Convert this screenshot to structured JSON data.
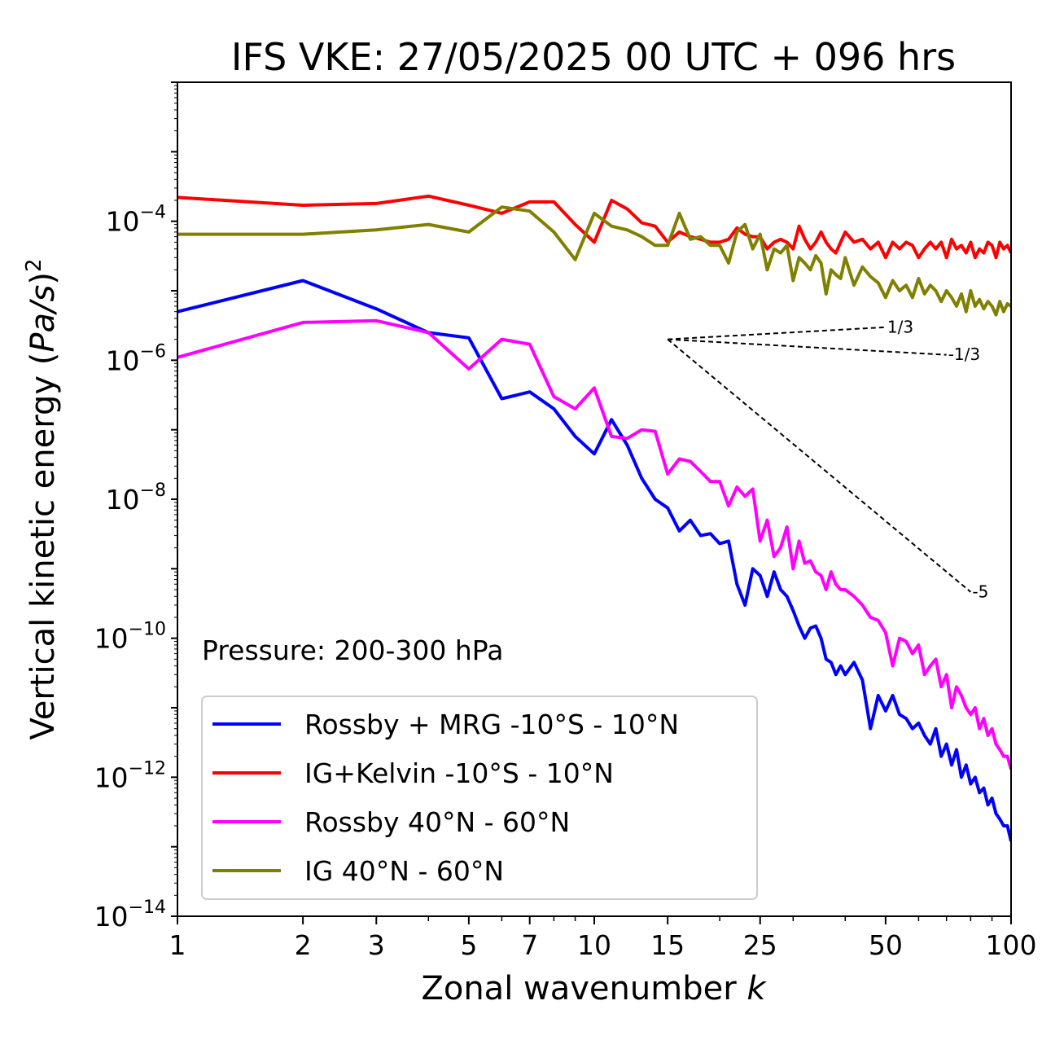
{
  "chart_data": {
    "type": "line",
    "title": "IFS VKE: 27/05/2025 00 UTC + 096 hrs",
    "xlabel": "Zonal wavenumber k",
    "xlabel_main": "Zonal wavenumber ",
    "xlabel_var": "k",
    "ylabel": "Vertical kinetic energy (Pa/s)^2",
    "ylabel_main": "Vertical kinetic energy (",
    "ylabel_var": "Pa/s",
    "ylabel_end": ")",
    "ylabel_exp": "2",
    "xscale": "log",
    "yscale": "log",
    "xlim": [
      1,
      100
    ],
    "ylim": [
      1e-14,
      0.01
    ],
    "xticks": [
      1,
      2,
      3,
      5,
      7,
      10,
      15,
      25,
      50,
      100
    ],
    "xtick_labels": [
      "1",
      "2",
      "3",
      "5",
      "7",
      "10",
      "15",
      "25",
      "50",
      "100"
    ],
    "yticks": [
      {
        "base": "10",
        "exp": "−4",
        "value": 0.0001
      },
      {
        "base": "10",
        "exp": "−6",
        "value": 1e-06
      },
      {
        "base": "10",
        "exp": "−8",
        "value": 1e-08
      },
      {
        "base": "10",
        "exp": "−10",
        "value": 1e-10
      },
      {
        "base": "10",
        "exp": "−12",
        "value": 1e-12
      },
      {
        "base": "10",
        "exp": "−14",
        "value": 1e-14
      }
    ],
    "annotation": "Pressure: 200-300 hPa",
    "legend_placement": "lower-left",
    "series": [
      {
        "name": "Rossby + MRG -10°S - 10°N",
        "color": "#0000ff",
        "x": [
          1,
          2,
          3,
          4,
          5,
          6,
          7,
          8,
          9,
          10,
          11,
          12,
          13,
          14,
          15,
          16,
          17,
          18,
          19,
          20,
          21,
          22,
          23,
          24,
          25,
          26,
          27,
          28,
          29,
          30,
          31,
          32,
          33,
          34,
          35,
          36,
          37,
          38,
          39,
          40,
          42,
          44,
          46,
          48,
          50,
          52,
          54,
          56,
          58,
          60,
          62,
          64,
          66,
          68,
          70,
          72,
          74,
          76,
          78,
          80,
          82,
          84,
          86,
          88,
          90,
          92,
          94,
          96,
          98,
          100
        ],
        "y": [
          5e-06,
          1.4e-05,
          5.5e-06,
          2.5e-06,
          2.1e-06,
          2.8e-07,
          3.5e-07,
          2e-07,
          8e-08,
          4.5e-08,
          1.4e-07,
          6e-08,
          2e-08,
          1e-08,
          7.5e-09,
          3.5e-09,
          5e-09,
          3e-09,
          3.2e-09,
          2.3e-09,
          2.5e-09,
          6e-10,
          3e-10,
          1e-09,
          8e-10,
          4e-10,
          9e-10,
          5e-10,
          4e-10,
          2.5e-10,
          1.5e-10,
          1e-10,
          1.4e-10,
          1.5e-10,
          1e-10,
          5e-11,
          4.5e-11,
          3e-11,
          4e-11,
          3e-11,
          4.5e-11,
          2.5e-11,
          5e-12,
          1.5e-11,
          9e-12,
          1.5e-11,
          8e-12,
          7e-12,
          5e-12,
          6e-12,
          4e-12,
          3e-12,
          5e-12,
          2e-12,
          3e-12,
          1.5e-12,
          2.5e-12,
          1e-12,
          1.5e-12,
          8e-13,
          1e-12,
          6e-13,
          7e-13,
          4e-13,
          5e-13,
          3e-13,
          2.5e-13,
          2e-13,
          2e-13,
          1.2e-13
        ]
      },
      {
        "name": "IG+Kelvin -10°S - 10°N",
        "color": "#ff0000",
        "x": [
          1,
          2,
          3,
          4,
          5,
          6,
          7,
          8,
          9,
          10,
          11,
          12,
          13,
          14,
          15,
          16,
          17,
          18,
          19,
          20,
          21,
          22,
          23,
          24,
          25,
          26,
          27,
          28,
          29,
          30,
          31,
          32,
          33,
          34,
          35,
          36,
          37,
          38,
          39,
          40,
          42,
          44,
          46,
          48,
          50,
          52,
          54,
          56,
          58,
          60,
          62,
          64,
          66,
          68,
          70,
          72,
          74,
          76,
          78,
          80,
          82,
          84,
          86,
          88,
          90,
          92,
          94,
          96,
          98,
          100
        ],
        "y": [
          0.00022,
          0.00017,
          0.00018,
          0.00023,
          0.00017,
          0.00013,
          0.00019,
          0.00019,
          9e-05,
          5e-05,
          0.0002,
          0.00015,
          9.5e-05,
          8.5e-05,
          5e-05,
          7e-05,
          6e-05,
          5.5e-05,
          5e-05,
          5e-05,
          5.5e-05,
          8e-05,
          6.5e-05,
          6e-05,
          6e-05,
          4e-05,
          5e-05,
          5.5e-05,
          5e-05,
          4e-05,
          8.5e-05,
          5.5e-05,
          4e-05,
          5e-05,
          7e-05,
          5e-05,
          4e-05,
          3.5e-05,
          5e-05,
          7e-05,
          5e-05,
          5.5e-05,
          4e-05,
          5e-05,
          3e-05,
          5e-05,
          4e-05,
          5e-05,
          4.5e-05,
          3e-05,
          4e-05,
          5e-05,
          4e-05,
          5e-05,
          3e-05,
          5.5e-05,
          4e-05,
          4.5e-05,
          3.5e-05,
          5e-05,
          3e-05,
          4e-05,
          3.5e-05,
          5e-05,
          4.5e-05,
          3e-05,
          5e-05,
          4e-05,
          4.5e-05,
          3.5e-05
        ]
      },
      {
        "name": "Rossby 40°N - 60°N",
        "color": "#ff00ff",
        "x": [
          1,
          2,
          3,
          4,
          5,
          6,
          7,
          8,
          9,
          10,
          11,
          12,
          13,
          14,
          15,
          16,
          17,
          18,
          19,
          20,
          21,
          22,
          23,
          24,
          25,
          26,
          27,
          28,
          29,
          30,
          31,
          32,
          33,
          34,
          35,
          36,
          37,
          38,
          39,
          40,
          42,
          44,
          46,
          48,
          50,
          52,
          54,
          56,
          58,
          60,
          62,
          64,
          66,
          68,
          70,
          72,
          74,
          76,
          78,
          80,
          82,
          84,
          86,
          88,
          90,
          92,
          94,
          96,
          98,
          100
        ],
        "y": [
          1.1e-06,
          3.5e-06,
          3.7e-06,
          2.5e-06,
          7.5e-07,
          2e-06,
          1.7e-06,
          3e-07,
          2e-07,
          4e-07,
          8e-08,
          7.5e-08,
          1e-07,
          9.5e-08,
          2.3e-08,
          3.8e-08,
          3.5e-08,
          2.5e-08,
          1.8e-08,
          1.8e-08,
          8e-09,
          1.5e-08,
          1.1e-08,
          1.4e-08,
          2.5e-09,
          5e-09,
          1.5e-09,
          2e-09,
          4e-09,
          1e-09,
          2.5e-09,
          1.2e-09,
          1.3e-09,
          9e-10,
          8e-10,
          5e-10,
          9e-10,
          6e-10,
          5e-10,
          5e-10,
          4e-10,
          3e-10,
          2e-10,
          1.8e-10,
          1.2e-10,
          4e-11,
          1e-10,
          9e-11,
          6e-11,
          8e-11,
          3e-11,
          4e-11,
          5e-11,
          2e-11,
          3e-11,
          1e-11,
          2e-11,
          1.5e-11,
          1e-11,
          8e-12,
          1e-11,
          5e-12,
          7e-12,
          4e-12,
          5e-12,
          3e-12,
          2.5e-12,
          2e-12,
          2e-12,
          1.3e-12
        ]
      },
      {
        "name": "IG 40°N - 60°N",
        "color": "#808000",
        "x": [
          1,
          2,
          3,
          4,
          5,
          6,
          7,
          8,
          9,
          10,
          11,
          12,
          13,
          14,
          15,
          16,
          17,
          18,
          19,
          20,
          21,
          22,
          23,
          24,
          25,
          26,
          27,
          28,
          29,
          30,
          31,
          32,
          33,
          34,
          35,
          36,
          37,
          38,
          39,
          40,
          42,
          44,
          46,
          48,
          50,
          52,
          54,
          56,
          58,
          60,
          62,
          64,
          66,
          68,
          70,
          72,
          74,
          76,
          78,
          80,
          82,
          84,
          86,
          88,
          90,
          92,
          94,
          96,
          98,
          100
        ],
        "y": [
          6.5e-05,
          6.5e-05,
          7.5e-05,
          9e-05,
          7e-05,
          0.00016,
          0.00014,
          7e-05,
          2.8e-05,
          0.00013,
          8.5e-05,
          7.5e-05,
          6e-05,
          4.5e-05,
          4.5e-05,
          0.00013,
          5.5e-05,
          6e-05,
          4.5e-05,
          4.5e-05,
          2.5e-05,
          7e-05,
          9e-05,
          4e-05,
          6.5e-05,
          2e-05,
          4e-05,
          3.5e-05,
          4.5e-05,
          1.4e-05,
          3e-05,
          2.5e-05,
          2e-05,
          3.2e-05,
          2.5e-05,
          9e-06,
          2e-05,
          1.7e-05,
          1.5e-05,
          3e-05,
          1.2e-05,
          2.2e-05,
          1.6e-05,
          1.3e-05,
          8e-06,
          1.4e-05,
          1e-05,
          1.2e-05,
          8e-06,
          1.5e-05,
          9e-06,
          1.2e-05,
          1e-05,
          7e-06,
          1e-05,
          8e-06,
          6e-06,
          9e-06,
          5e-06,
          1e-05,
          6e-06,
          7.5e-06,
          5.5e-06,
          7e-06,
          6e-06,
          4.5e-06,
          7e-06,
          5e-06,
          6.5e-06,
          6e-06
        ]
      }
    ],
    "reference_lines": [
      {
        "label": "1/3",
        "slope": 0.3333,
        "k0": 15,
        "k1": 50
      },
      {
        "label": "-1/3",
        "slope": -0.3333,
        "k0": 15,
        "k1": 70
      },
      {
        "label": "-5",
        "slope": -5,
        "k0": 15,
        "k1": 80
      }
    ],
    "reference_anchor": {
      "k": 15,
      "y": 2e-06
    }
  }
}
